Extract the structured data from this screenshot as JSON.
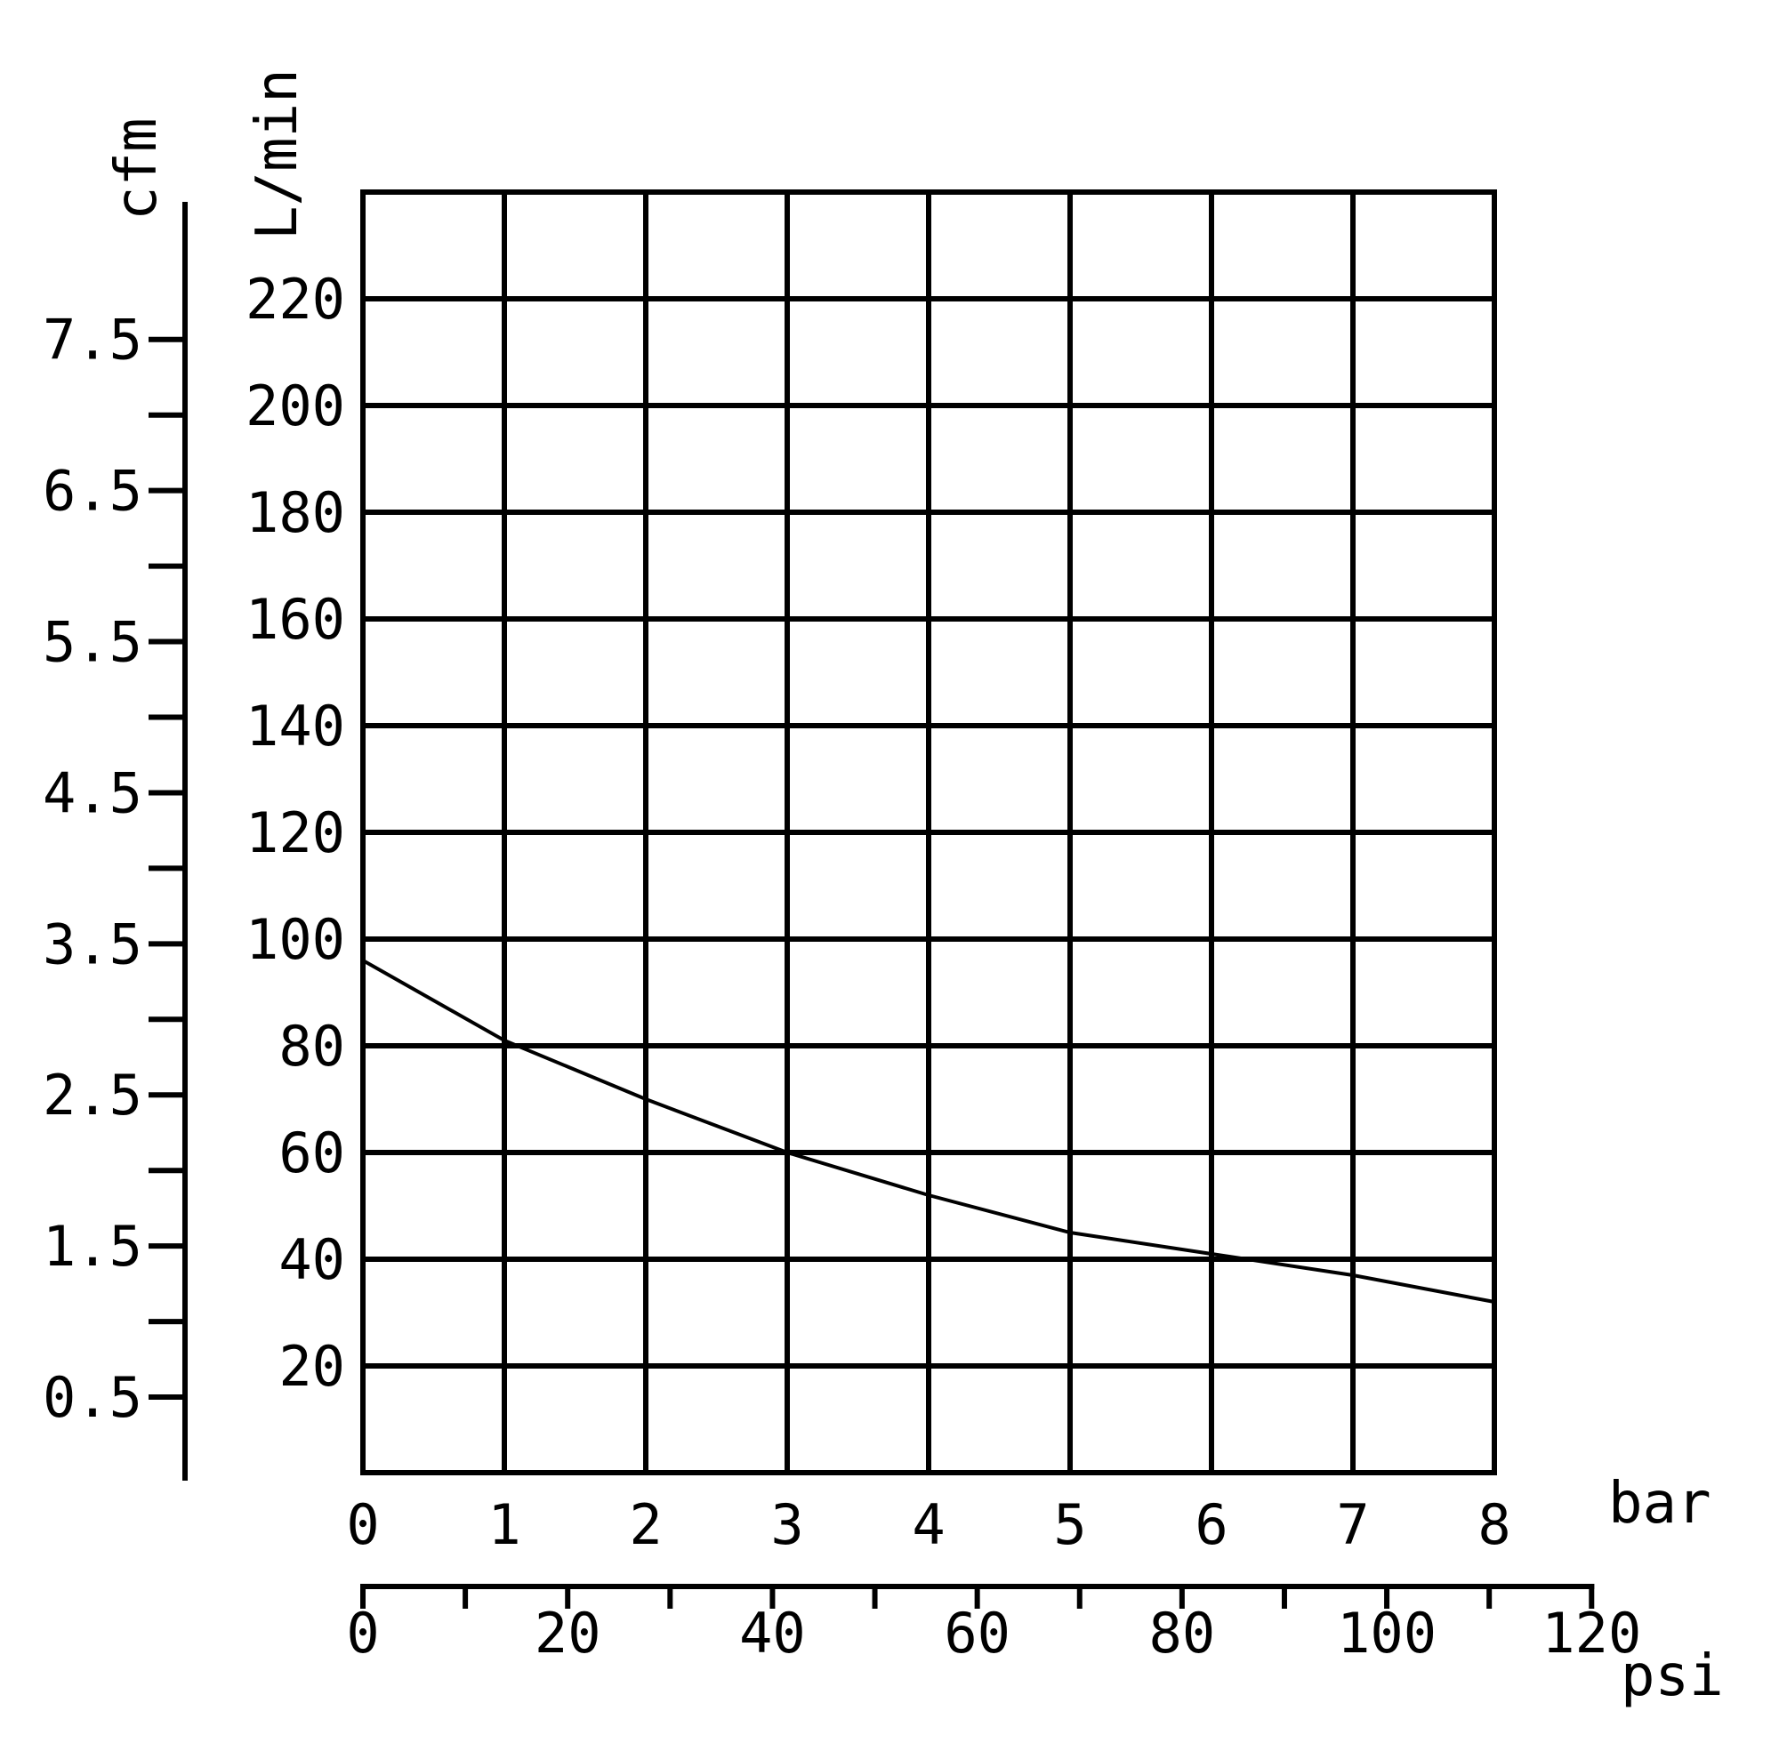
{
  "chart_data": {
    "type": "line",
    "title": "",
    "x_axis": {
      "label": "bar",
      "range": [
        0,
        8
      ],
      "ticks": [
        0,
        1,
        2,
        3,
        4,
        5,
        6,
        7,
        8
      ],
      "tick_labels": [
        "0",
        "1",
        "2",
        "3",
        "4",
        "5",
        "6",
        "7",
        "8"
      ]
    },
    "x2_axis": {
      "label": "psi",
      "range": [
        0,
        120
      ],
      "tick_labels": [
        "0",
        "20",
        "40",
        "60",
        "80",
        "100",
        "120"
      ],
      "tick_values": [
        0,
        20,
        40,
        60,
        80,
        100,
        120
      ],
      "minor_ticks": [
        10,
        30,
        50,
        70,
        90,
        110
      ]
    },
    "y_axis": {
      "label": "L/min",
      "range": [
        0,
        240
      ],
      "tick_labels": [
        "20",
        "40",
        "60",
        "80",
        "100",
        "120",
        "140",
        "160",
        "180",
        "200",
        "220"
      ],
      "tick_values": [
        20,
        40,
        60,
        80,
        100,
        120,
        140,
        160,
        180,
        200,
        220
      ]
    },
    "y2_axis": {
      "label": "cfm",
      "tick_labels": [
        "0.5",
        "1.5",
        "2.5",
        "3.5",
        "4.5",
        "5.5",
        "6.5",
        "7.5"
      ],
      "tick_values": [
        0.5,
        1.5,
        2.5,
        3.5,
        4.5,
        5.5,
        6.5,
        7.5
      ],
      "minor_ticks": [
        1,
        2,
        3,
        4,
        5,
        6,
        7
      ]
    },
    "grid": true,
    "series": [
      {
        "x": [
          0,
          1,
          2,
          3,
          4,
          5,
          6,
          7,
          8
        ],
        "values": [
          96,
          81,
          70,
          60,
          52,
          45,
          41,
          37,
          32
        ]
      }
    ]
  }
}
